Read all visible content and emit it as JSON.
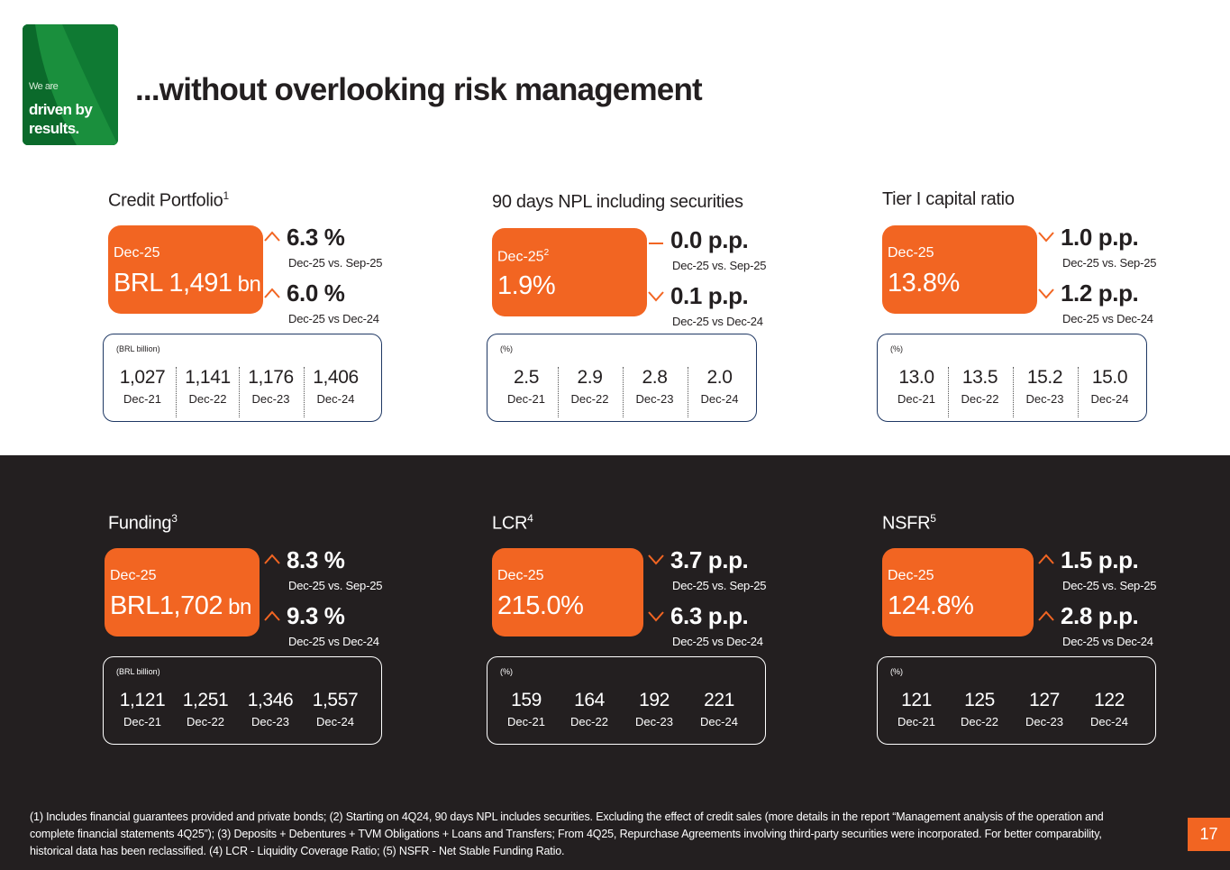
{
  "logo": {
    "small": "We are",
    "big1": "driven by",
    "big2": "results."
  },
  "title": "...without overlooking risk management",
  "blocks": [
    {
      "title": "Credit Portfolio",
      "title_sup": "1",
      "kpi_date": "Dec-25",
      "kpi_date_sup": "",
      "kpi_value": "BRL 1,491",
      "kpi_unit": " bn",
      "delta1": {
        "dir": "up",
        "value": "6.3 %",
        "label": "Dec-25 vs. Sep-25"
      },
      "delta2": {
        "dir": "up",
        "value": "6.0 %",
        "label": "Dec-25 vs Dec-24"
      },
      "hist_unit": "(BRL billion)",
      "hist": [
        {
          "v": "1,027",
          "l": "Dec-21"
        },
        {
          "v": "1,141",
          "l": "Dec-22"
        },
        {
          "v": "1,176",
          "l": "Dec-23"
        },
        {
          "v": "1,406",
          "l": "Dec-24"
        }
      ]
    },
    {
      "title": "90 days NPL including securities",
      "title_sup": "",
      "kpi_date": "Dec-25",
      "kpi_date_sup": "2",
      "kpi_value": "1.9%",
      "kpi_unit": "",
      "delta1": {
        "dir": "flat",
        "value": "0.0 p.p.",
        "label": "Dec-25 vs. Sep-25"
      },
      "delta2": {
        "dir": "down",
        "value": "0.1 p.p.",
        "label": "Dec-25 vs Dec-24"
      },
      "hist_unit": "(%)",
      "hist": [
        {
          "v": "2.5",
          "l": "Dec-21"
        },
        {
          "v": "2.9",
          "l": "Dec-22"
        },
        {
          "v": "2.8",
          "l": "Dec-23"
        },
        {
          "v": "2.0",
          "l": "Dec-24"
        }
      ]
    },
    {
      "title": "Tier I capital ratio",
      "title_sup": "",
      "kpi_date": "Dec-25",
      "kpi_date_sup": "",
      "kpi_value": "13.8%",
      "kpi_unit": "",
      "delta1": {
        "dir": "down",
        "value": "1.0 p.p.",
        "label": "Dec-25 vs. Sep-25"
      },
      "delta2": {
        "dir": "down",
        "value": "1.2 p.p.",
        "label": "Dec-25 vs Dec-24"
      },
      "hist_unit": "(%)",
      "hist": [
        {
          "v": "13.0",
          "l": "Dec-21"
        },
        {
          "v": "13.5",
          "l": "Dec-22"
        },
        {
          "v": "15.2",
          "l": "Dec-23"
        },
        {
          "v": "15.0",
          "l": "Dec-24"
        }
      ]
    },
    {
      "title": "Funding",
      "title_sup": "3",
      "kpi_date": "Dec-25",
      "kpi_date_sup": "",
      "kpi_value": "BRL1,702",
      "kpi_unit": " bn",
      "delta1": {
        "dir": "up",
        "value": "8.3 %",
        "label": "Dec-25 vs. Sep-25"
      },
      "delta2": {
        "dir": "up",
        "value": "9.3 %",
        "label": "Dec-25 vs Dec-24"
      },
      "hist_unit": "(BRL billion)",
      "hist": [
        {
          "v": "1,121",
          "l": "Dec-21"
        },
        {
          "v": "1,251",
          "l": "Dec-22"
        },
        {
          "v": "1,346",
          "l": "Dec-23"
        },
        {
          "v": "1,557",
          "l": "Dec-24"
        }
      ]
    },
    {
      "title": "LCR",
      "title_sup": "4",
      "kpi_date": "Dec-25",
      "kpi_date_sup": "",
      "kpi_value": "215.0%",
      "kpi_unit": "",
      "delta1": {
        "dir": "down",
        "value": "3.7 p.p.",
        "label": "Dec-25 vs. Sep-25"
      },
      "delta2": {
        "dir": "down",
        "value": "6.3 p.p.",
        "label": "Dec-25 vs Dec-24"
      },
      "hist_unit": "(%)",
      "hist": [
        {
          "v": "159",
          "l": "Dec-21"
        },
        {
          "v": "164",
          "l": "Dec-22"
        },
        {
          "v": "192",
          "l": "Dec-23"
        },
        {
          "v": "221",
          "l": "Dec-24"
        }
      ]
    },
    {
      "title": "NSFR",
      "title_sup": "5",
      "kpi_date": "Dec-25",
      "kpi_date_sup": "",
      "kpi_value": "124.8%",
      "kpi_unit": "",
      "delta1": {
        "dir": "up",
        "value": "1.5 p.p.",
        "label": "Dec-25 vs. Sep-25"
      },
      "delta2": {
        "dir": "up",
        "value": "2.8 p.p.",
        "label": "Dec-25 vs Dec-24"
      },
      "hist_unit": "(%)",
      "hist": [
        {
          "v": "121",
          "l": "Dec-21"
        },
        {
          "v": "125",
          "l": "Dec-22"
        },
        {
          "v": "127",
          "l": "Dec-23"
        },
        {
          "v": "122",
          "l": "Dec-24"
        }
      ]
    }
  ],
  "footnote": "(1) Includes financial guarantees provided and private bonds; (2) Starting on 4Q24, 90 days NPL includes securities. Excluding the effect of credit sales (more details in the report “Management analysis of the operation and complete financial statements 4Q25”); (3) Deposits + Debentures + TVM Obligations + Loans and Transfers; From 4Q25, Repurchase Agreements involving third-party securities were incorporated. For better comparability, historical data has been reclassified. (4) LCR - Liquidity Coverage Ratio; (5) NSFR - Net Stable Funding Ratio.",
  "page_number": "17",
  "colors": {
    "accent": "#f26522",
    "dark": "#231f20",
    "green": "#0f7a33",
    "navy": "#1f3864"
  }
}
